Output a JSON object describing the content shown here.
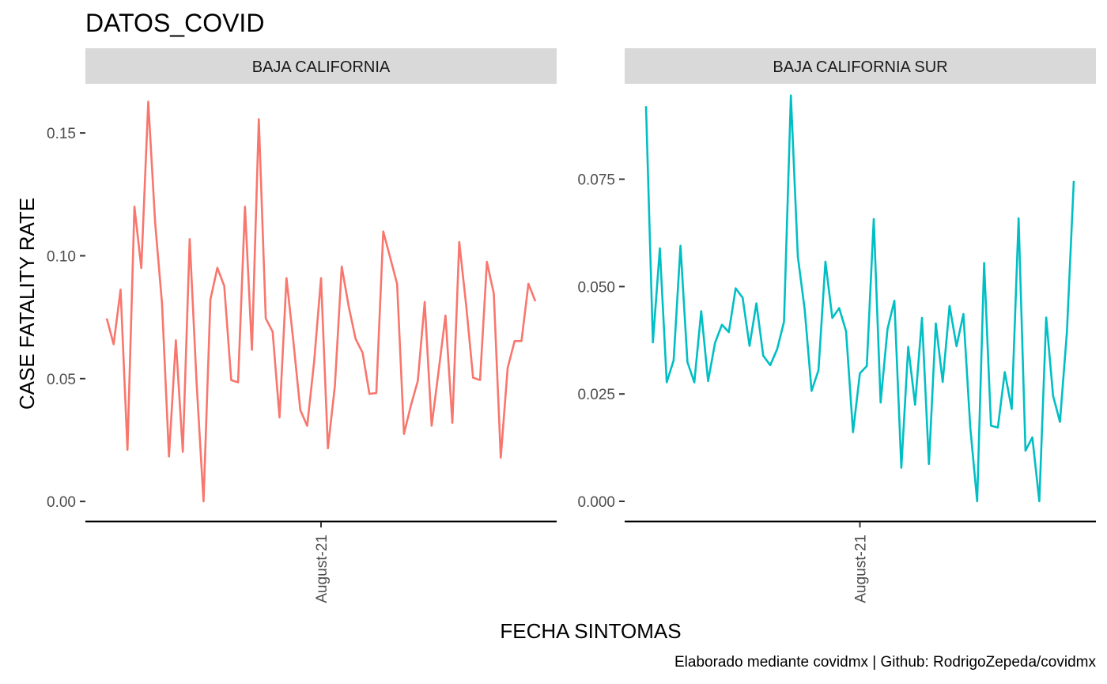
{
  "title": "DATOS_COVID",
  "caption": "Elaborado mediante covidmx | Github: RodrigoZepeda/covidmx",
  "colors": {
    "series_1": "#F8766D",
    "series_2": "#00BFC4",
    "strip": "#D9D9D9",
    "axis": "#000000",
    "tick_text": "#4D4D4D"
  },
  "chart_data": {
    "type": "line",
    "title": "DATOS_COVID",
    "xlabel": "FECHA SINTOMAS",
    "ylabel": "CASE FATALITY RATE",
    "x_tick_labels": [
      "August-21"
    ],
    "grid": false,
    "legend": "none",
    "facets": [
      {
        "strip_label": "BAJA CALIFORNIA",
        "color": "#F8766D",
        "ylim": [
          -0.008,
          0.17
        ],
        "y_ticks": [
          0.0,
          0.05,
          0.1,
          0.15
        ],
        "y_tick_labels": [
          "0.00",
          "0.05",
          "0.10",
          "0.15"
        ],
        "values": [
          0.0745,
          0.064,
          0.0862,
          0.021,
          0.12,
          0.095,
          0.1627,
          0.1135,
          0.0806,
          0.0183,
          0.0656,
          0.0202,
          0.1068,
          0.0485,
          0.0,
          0.0822,
          0.0951,
          0.0877,
          0.0494,
          0.0485,
          0.12,
          0.0617,
          0.1556,
          0.0745,
          0.0691,
          0.0342,
          0.0909,
          0.0653,
          0.0372,
          0.0308,
          0.057,
          0.0909,
          0.0216,
          0.047,
          0.0956,
          0.0794,
          0.0662,
          0.0606,
          0.0438,
          0.0441,
          0.1099,
          0.0993,
          0.0886,
          0.0275,
          0.039,
          0.0491,
          0.0812,
          0.0308,
          0.0528,
          0.0757,
          0.032,
          0.1056,
          0.0797,
          0.0504,
          0.0494,
          0.0975,
          0.0846,
          0.0178,
          0.0543,
          0.0653,
          0.0653,
          0.0886,
          0.0815
        ],
        "x_tick_index": 31
      },
      {
        "strip_label": "BAJA CALIFORNIA SUR",
        "color": "#00BFC4",
        "ylim": [
          -0.0046,
          0.0972
        ],
        "y_ticks": [
          0.0,
          0.025,
          0.05,
          0.075
        ],
        "y_tick_labels": [
          "0.000",
          "0.025",
          "0.050",
          "0.075"
        ],
        "values": [
          0.092,
          0.037,
          0.0589,
          0.0277,
          0.0328,
          0.0595,
          0.0324,
          0.0277,
          0.0443,
          0.028,
          0.0369,
          0.0411,
          0.0394,
          0.0496,
          0.0474,
          0.0362,
          0.0461,
          0.0339,
          0.0317,
          0.0354,
          0.0418,
          0.0945,
          0.057,
          0.0446,
          0.0257,
          0.0305,
          0.0558,
          0.0427,
          0.045,
          0.0396,
          0.0161,
          0.0298,
          0.0315,
          0.0657,
          0.023,
          0.0401,
          0.0467,
          0.0078,
          0.036,
          0.0225,
          0.0427,
          0.0087,
          0.0414,
          0.0278,
          0.0455,
          0.0361,
          0.0436,
          0.0172,
          0.0,
          0.0555,
          0.0176,
          0.0172,
          0.0301,
          0.0215,
          0.0659,
          0.0118,
          0.0149,
          0.0,
          0.0428,
          0.0246,
          0.0185,
          0.0394,
          0.0746
        ],
        "x_tick_index": 31
      }
    ]
  }
}
